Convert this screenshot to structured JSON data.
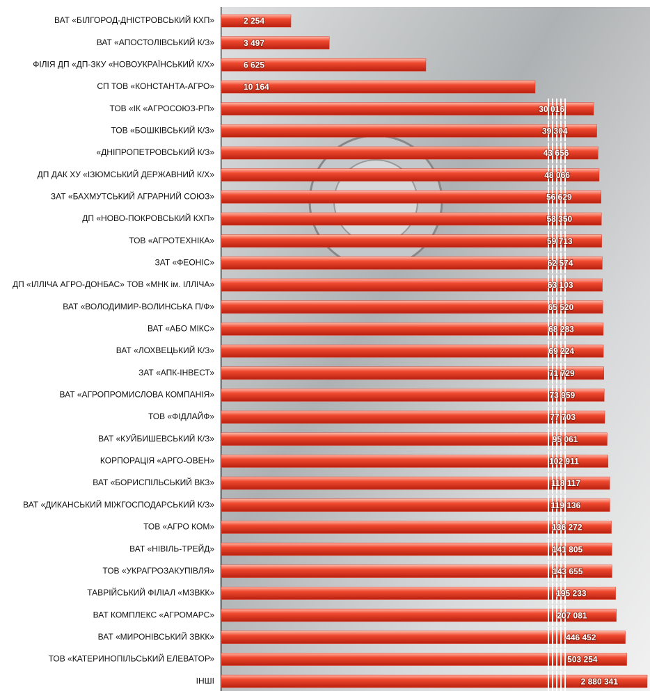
{
  "chart_data": {
    "type": "bar",
    "orientation": "horizontal",
    "color": "#e8321e",
    "categories": [
      "ВАТ «БІЛГОРОД-ДНІСТРОВСЬКИЙ КХП»",
      "ВАТ «АПОСТОЛІВСЬКИЙ К/З»",
      "ФІЛІЯ ДП «ДП-ЗКУ «НОВОУКРАЇНСЬКИЙ К/Х»",
      "СП ТОВ «КОНСТАНТА-АГРО»",
      "ТОВ «ІК «АГРОСОЮЗ-РП»",
      "ТОВ «БОШКІВСЬКИЙ К/З»",
      "«ДНІПРОПЕТРОВСЬКИЙ К/З»",
      "ДП ДАК ХУ «ІЗЮМСЬКИЙ ДЕРЖАВНИЙ К/Х»",
      "ЗАТ «БАХМУТСЬКИЙ АГРАРНИЙ СОЮЗ»",
      "ДП «НОВО-ПОКРОВСЬКИЙ КХП»",
      "ТОВ «АГРОТЕХНІКА»",
      "ЗАТ «ФЕОНІС»",
      "ДП «ІЛЛІЧА АГРО-ДОНБАС» ТОВ «МНК ім. ІЛЛІЧА»",
      "ВАТ «ВОЛОДИМИР-ВОЛИНСЬКА П/Ф»",
      "ВАТ «АБО МІКС»",
      "ВАТ «ЛОХВЕЦЬКИЙ К/З»",
      "ЗАТ «АПК-ІНВЕСТ»",
      "ВАТ «АГРОПРОМИСЛОВА КОМПАНІЯ»",
      "ТОВ «ФІДЛАЙФ»",
      "ВАТ «КУЙБИШЕВСЬКИЙ К/З»",
      "КОРПОРАЦІЯ «АРГО-ОВЕН»",
      "ВАТ «БОРИСПІЛЬСЬКИЙ ВКЗ»",
      "ВАТ «ДИКАНСЬКИЙ МІЖГОСПОДАРСЬКИЙ К/З»",
      "ТОВ «АГРО КОМ»",
      "ВАТ «НІВІЛЬ-ТРЕЙД»",
      "ТОВ «УКРАГРОЗАКУПІВЛЯ»",
      "ТАВРІЙСЬКИЙ ФІЛІАЛ «МЗВКК»",
      "ВАТ КОМПЛЕКС «АГРОМАРС»",
      "ВАТ «МИРОНІВСЬКИЙ ЗВКК»",
      "ТОВ «КАТЕРИНОПІЛЬСЬКИЙ ЕЛЕВАТОР»",
      "ІНШІ"
    ],
    "values": [
      2254,
      3497,
      6625,
      10164,
      30016,
      39304,
      43656,
      48066,
      56629,
      58350,
      59713,
      62574,
      63103,
      65520,
      68283,
      69224,
      71729,
      73959,
      77703,
      95061,
      102911,
      118117,
      119136,
      136272,
      141805,
      143655,
      195233,
      207081,
      446452,
      503254,
      2880341
    ],
    "value_labels": [
      "2 254",
      "3 497",
      "6 625",
      "10 164",
      "30 016",
      "39 304",
      "43 656",
      "48 066",
      "56 629",
      "58 350",
      "59 713",
      "62 574",
      "63 103",
      "65 520",
      "68 283",
      "69 224",
      "71 729",
      "73 959",
      "77 703",
      "95 061",
      "102 911",
      "118 117",
      "119 136",
      "136 272",
      "141 805",
      "143 655",
      "195 233",
      "207 081",
      "446 452",
      "503 254",
      "2 880 341"
    ]
  }
}
